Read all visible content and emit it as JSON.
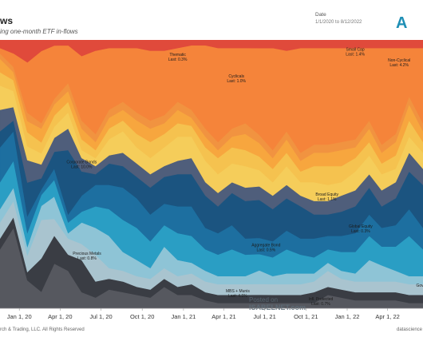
{
  "header": {
    "title": "ws",
    "subtitle": "ing one-month ETF in-flows",
    "date_label": "Date",
    "date_range": "1/1/2020 to 8/12/2022",
    "logo_text": "A"
  },
  "footer": {
    "left": "rch & Trading, LLC. All Rights Reserved",
    "right": "datascience"
  },
  "watermark": {
    "line1": "Posted on",
    "line2": "ISABELNET.com"
  },
  "chart_data": {
    "type": "area",
    "stacking": "percent",
    "x": [
      "2019-11-19",
      "2019-12-19",
      "2020-01-19",
      "2020-02-19",
      "2020-03-19",
      "2020-04-19",
      "2020-05-19",
      "2020-06-19",
      "2020-07-19",
      "2020-08-19",
      "2020-09-19",
      "2020-10-19",
      "2020-11-19",
      "2020-12-19",
      "2021-01-19",
      "2021-02-19",
      "2021-03-19",
      "2021-04-19",
      "2021-05-19",
      "2021-06-19",
      "2021-07-19",
      "2021-08-19",
      "2021-09-19",
      "2021-10-19",
      "2021-11-19",
      "2021-12-19",
      "2022-01-19",
      "2022-02-19",
      "2022-03-19",
      "2022-04-19",
      "2022-05-19",
      "2022-06-19"
    ],
    "xtick_labels": [
      "Jan 1, 20",
      "Apr 1, 20",
      "Jul 1, 20",
      "Oct 1, 20",
      "Jan 1, 21",
      "Apr 1, 21",
      "Jul 1, 21",
      "Oct 1, 21",
      "Jan 1, 22",
      "Apr 1, 22"
    ],
    "ylim": [
      0,
      100
    ],
    "series": [
      {
        "values": [
          22,
          30,
          10,
          6,
          16,
          14,
          6,
          4,
          7,
          6,
          5,
          4,
          8,
          5,
          5,
          3,
          2,
          2,
          2,
          2,
          2,
          2,
          2,
          2,
          5,
          4,
          3,
          3,
          3,
          3,
          2,
          2
        ]
      },
      {
        "values": [
          4,
          4,
          3,
          12,
          10,
          6,
          12,
          6,
          4,
          4,
          3,
          3,
          3,
          3,
          4,
          3,
          3,
          3,
          3,
          3,
          3,
          3,
          3,
          4,
          3,
          3,
          3,
          3,
          3,
          3,
          3,
          3
        ]
      },
      {
        "values": [
          6,
          6,
          6,
          14,
          6,
          6,
          6,
          10,
          4,
          4,
          4,
          4,
          4,
          4,
          4,
          4,
          4,
          4,
          4,
          4,
          4,
          4,
          4,
          4,
          6,
          4,
          4,
          4,
          4,
          4,
          4,
          4
        ]
      },
      {
        "values": [
          5,
          5,
          3,
          5,
          8,
          2,
          8,
          10,
          12,
          7,
          6,
          4,
          8,
          6,
          4,
          4,
          3,
          3,
          3,
          5,
          3,
          4,
          4,
          3,
          3,
          3,
          3,
          8,
          6,
          4,
          3,
          3
        ]
      },
      {
        "values": [
          10,
          10,
          5,
          4,
          6,
          4,
          4,
          8,
          10,
          12,
          12,
          10,
          8,
          10,
          10,
          8,
          8,
          10,
          8,
          6,
          7,
          9,
          7,
          6,
          5,
          7,
          8,
          9,
          7,
          9,
          15,
          10
        ]
      },
      {
        "values": [
          13,
          11,
          6,
          2,
          4,
          3,
          6,
          8,
          9,
          12,
          11,
          10,
          8,
          10,
          11,
          8,
          8,
          9,
          6,
          6,
          6,
          7,
          6,
          7,
          5,
          6,
          7,
          8,
          7,
          8,
          10,
          8
        ]
      },
      {
        "values": [
          6,
          4,
          12,
          4,
          6,
          24,
          9,
          4,
          8,
          8,
          8,
          10,
          10,
          12,
          12,
          12,
          10,
          12,
          14,
          14,
          12,
          12,
          12,
          9,
          8,
          9,
          10,
          10,
          8,
          10,
          14,
          16
        ]
      },
      {
        "values": [
          8,
          5,
          8,
          5,
          5,
          8,
          5,
          3,
          3,
          5,
          5,
          5,
          4,
          5,
          6,
          5,
          5,
          4,
          5,
          5,
          5,
          5,
          4,
          5,
          5,
          6,
          6,
          5,
          6,
          6,
          7,
          6
        ]
      },
      {
        "values": [
          9,
          6,
          5,
          4,
          4,
          6,
          3,
          3,
          6,
          8,
          6,
          6,
          7,
          9,
          8,
          8,
          7,
          7,
          8,
          6,
          5,
          7,
          5,
          7,
          6,
          5,
          7,
          7,
          6,
          5,
          6,
          6
        ]
      },
      {
        "values": [
          5,
          4,
          5,
          4,
          4,
          4,
          4,
          3,
          4,
          4,
          5,
          6,
          5,
          5,
          4,
          5,
          6,
          6,
          6,
          5,
          5,
          5,
          4,
          6,
          7,
          6,
          5,
          5,
          4,
          5,
          6,
          4
        ]
      },
      {
        "values": [
          5,
          3,
          4,
          5,
          4,
          4,
          4,
          3,
          4,
          4,
          5,
          5,
          4,
          5,
          3,
          4,
          3,
          4,
          6,
          5,
          4,
          5,
          4,
          5,
          5,
          6,
          4,
          5,
          4,
          5,
          6,
          4
        ]
      },
      {
        "values": [
          2,
          2,
          3,
          2,
          2,
          3,
          3,
          3,
          3,
          3,
          3,
          3,
          3,
          3,
          3,
          3,
          3,
          3,
          4,
          3,
          3,
          3,
          3,
          3,
          3,
          3,
          3,
          3,
          3,
          3,
          3,
          3
        ]
      },
      {
        "values": [
          2,
          5,
          18,
          26,
          19,
          14,
          24,
          31,
          23,
          20,
          24,
          26,
          24,
          20,
          24,
          31,
          35,
          30,
          28,
          32,
          38,
          30,
          39,
          36,
          36,
          35,
          34,
          27,
          36,
          32,
          18,
          28
        ]
      },
      {
        "values": [
          3,
          5,
          8,
          4,
          2,
          2,
          6,
          4,
          3,
          3,
          3,
          4,
          4,
          3,
          2,
          2,
          3,
          3,
          3,
          3,
          3,
          4,
          3,
          3,
          3,
          3,
          3,
          3,
          3,
          3,
          3,
          3
        ]
      }
    ],
    "colors": [
      "#56585f",
      "#3a3d44",
      "#a9c4cf",
      "#8ec4d6",
      "#2a9ec4",
      "#1d6fa0",
      "#1b5480",
      "#4f5e7b",
      "#f5cd5a",
      "#f5c24f",
      "#f7a63e",
      "#f19340",
      "#f5843a",
      "#e04a3b"
    ],
    "annotations": [
      {
        "text": "Thematic",
        "sub": "Last: 0.3%",
        "x": "2020-12-19",
        "y": 94
      },
      {
        "text": "Cyclicals",
        "sub": "Last: 1.0%",
        "x": "2021-04-29",
        "y": 86
      },
      {
        "text": "Small Cap",
        "sub": "Last: 1.4%",
        "x": "2022-01-19",
        "y": 96
      },
      {
        "text": "Non-Cyclical",
        "sub": "Last: 4.2%",
        "x": "2022-04-27",
        "y": 92
      },
      {
        "text": "Corporate Bonds",
        "sub": "Last: 10.0%",
        "x": "2020-05-19",
        "y": 54
      },
      {
        "text": "Broad Equity",
        "sub": "Last: 1.1%",
        "x": "2021-11-17",
        "y": 42
      },
      {
        "text": "Global Equity",
        "sub": "Last: 0.3%",
        "x": "2022-01-31",
        "y": 30
      },
      {
        "text": "Aggregate Bond",
        "sub": "Last: 0.5%",
        "x": "2021-07-04",
        "y": 23
      },
      {
        "text": "Precious Metals",
        "sub": "Last: 0.8%",
        "x": "2020-05-31",
        "y": 20
      },
      {
        "text": "MBS + Munis",
        "sub": "Last: 4.5%",
        "x": "2021-05-02",
        "y": 6
      },
      {
        "text": "Infl. Protected",
        "sub": "Last: 0.7%",
        "x": "2021-11-03",
        "y": 3
      },
      {
        "text": "Gov",
        "sub": "",
        "x": "2022-06-12",
        "y": 8
      }
    ],
    "grid": false,
    "legend": "none"
  }
}
